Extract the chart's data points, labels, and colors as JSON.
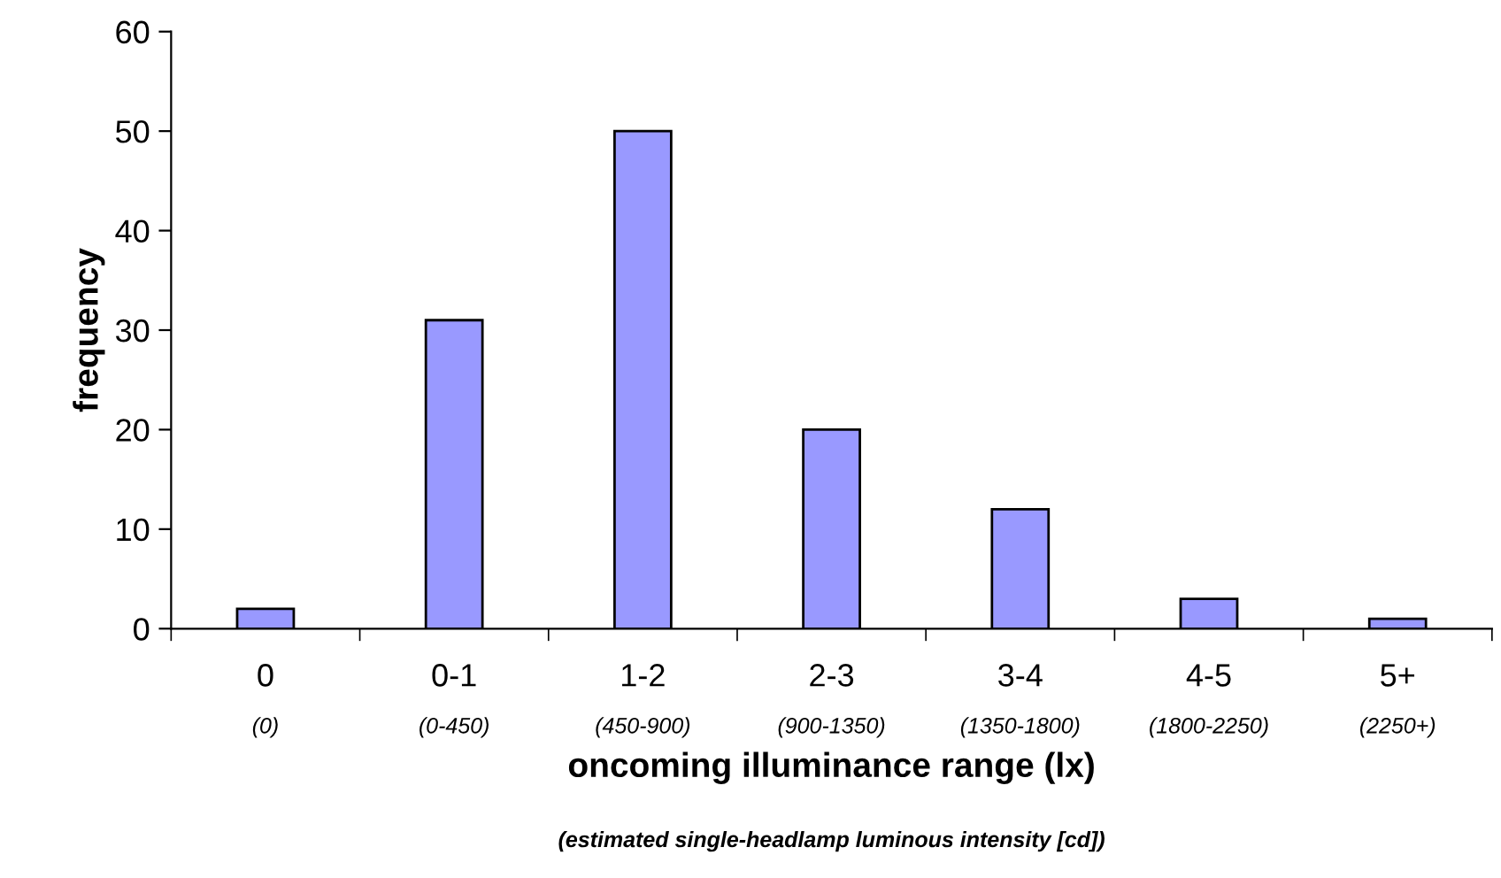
{
  "chart_data": {
    "type": "bar",
    "categories": [
      "0\n(0)",
      "0-1\n(0-450)",
      "1-2\n(450-900)",
      "2-3\n(900-1350)",
      "3-4\n(1350-1800)",
      "4-5\n(1800-2250)",
      "5+\n(2250+)"
    ],
    "values": [
      2,
      31,
      50,
      20,
      12,
      3,
      1
    ],
    "color": "#9999ff",
    "xlabel": "oncoming illuminance range (lx)",
    "ylabel": "frequency",
    "annotations": [
      "(estimated single-headlamp luminous intensity [cd])"
    ],
    "ylim": [
      0,
      60
    ],
    "yticks": [
      0,
      10,
      20,
      30,
      40,
      50,
      60
    ],
    "grid": false,
    "legend": false
  }
}
